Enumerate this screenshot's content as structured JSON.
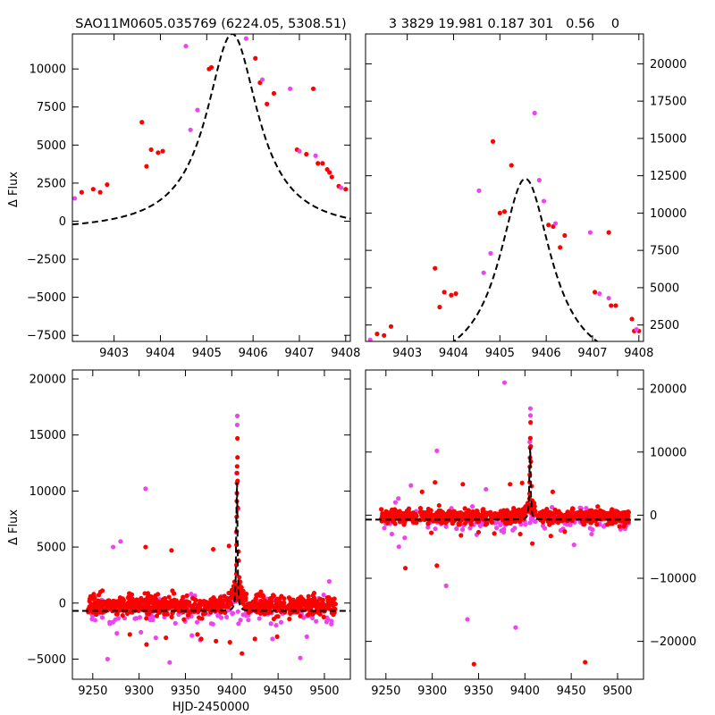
{
  "figure": {
    "title_left": "SAO11M0605.035769 (6224.05, 5308.51)",
    "title_right": "3 3829 19.981 0.187 301   0.56    0",
    "ylabel_top": "Δ Flux",
    "ylabel_bottom": "Δ Flux",
    "xlabel_bottom": "HJD-2450000"
  },
  "colors": {
    "series_a": "#ff0000",
    "series_b": "#ee44ee",
    "model": "#000000"
  },
  "chart_data": [
    {
      "id": "top-left",
      "type": "scatter",
      "title": "SAO11M0605.035769 (6224.05, 5308.51)",
      "ylabel": "Δ Flux",
      "xlim": [
        9402.1,
        9408.1
      ],
      "ylim": [
        -7900,
        12300
      ],
      "xticks": [
        9403,
        9404,
        9405,
        9406,
        9407,
        9408
      ],
      "yticks": [
        -7500,
        -5000,
        -2500,
        0,
        2500,
        5000,
        7500,
        10000
      ],
      "ytick_labels": [
        "−7500",
        "−5000",
        "−2500",
        "0",
        "2500",
        "5000",
        "7500",
        "10000"
      ],
      "yaxis_side": "left",
      "model": {
        "peak_x": 9405.55,
        "peak_y": 12300,
        "halfwidth": 0.68,
        "baseline": -700
      },
      "series": [
        {
          "name": "red",
          "points": [
            [
              9402.3,
              1900
            ],
            [
              9402.55,
              2100
            ],
            [
              9402.7,
              1900
            ],
            [
              9402.85,
              2400
            ],
            [
              9403.6,
              6500
            ],
            [
              9403.7,
              3600
            ],
            [
              9403.8,
              4700
            ],
            [
              9403.95,
              4500
            ],
            [
              9404.05,
              4600
            ],
            [
              9405.05,
              10000
            ],
            [
              9405.1,
              10100
            ],
            [
              9406.05,
              10700
            ],
            [
              9406.15,
              9100
            ],
            [
              9406.3,
              7700
            ],
            [
              9406.45,
              8400
            ],
            [
              9406.95,
              4700
            ],
            [
              9407.15,
              4400
            ],
            [
              9407.3,
              8700
            ],
            [
              9407.4,
              3800
            ],
            [
              9407.5,
              3800
            ],
            [
              9407.6,
              3400
            ],
            [
              9407.65,
              3200
            ],
            [
              9407.7,
              2900
            ],
            [
              9407.85,
              2300
            ],
            [
              9408.0,
              2100
            ]
          ]
        },
        {
          "name": "magenta",
          "points": [
            [
              9402.15,
              1500
            ],
            [
              9404.55,
              11500
            ],
            [
              9404.65,
              6000
            ],
            [
              9404.8,
              7300
            ],
            [
              9405.85,
              12000
            ],
            [
              9406.2,
              9300
            ],
            [
              9406.8,
              8700
            ],
            [
              9407.0,
              4600
            ],
            [
              9407.35,
              4300
            ],
            [
              9407.9,
              2200
            ]
          ]
        }
      ]
    },
    {
      "id": "top-right",
      "type": "scatter",
      "title": "3 3829 19.981 0.187 301   0.56    0",
      "xlim": [
        9402.1,
        9408.1
      ],
      "ylim": [
        1400,
        22000
      ],
      "xticks": [
        9403,
        9404,
        9405,
        9406,
        9407,
        9408
      ],
      "yticks": [
        2500,
        5000,
        7500,
        10000,
        12500,
        15000,
        17500,
        20000
      ],
      "ytick_labels": [
        "2500",
        "5000",
        "7500",
        "10000",
        "12500",
        "15000",
        "17500",
        "20000"
      ],
      "yaxis_side": "right",
      "model": {
        "peak_x": 9405.55,
        "peak_y": 12300,
        "halfwidth": 0.68,
        "baseline": -700
      },
      "series": [
        {
          "name": "red",
          "points": [
            [
              9402.35,
              1900
            ],
            [
              9402.5,
              1800
            ],
            [
              9402.65,
              2400
            ],
            [
              9403.6,
              6300
            ],
            [
              9403.7,
              3700
            ],
            [
              9403.8,
              4700
            ],
            [
              9403.95,
              4500
            ],
            [
              9404.05,
              4600
            ],
            [
              9404.85,
              14800
            ],
            [
              9405.0,
              10000
            ],
            [
              9405.1,
              10100
            ],
            [
              9405.25,
              13200
            ],
            [
              9406.05,
              9200
            ],
            [
              9406.15,
              9100
            ],
            [
              9406.3,
              7700
            ],
            [
              9406.4,
              8500
            ],
            [
              9407.05,
              4700
            ],
            [
              9407.35,
              8700
            ],
            [
              9407.4,
              3800
            ],
            [
              9407.5,
              3800
            ],
            [
              9407.85,
              2900
            ],
            [
              9407.9,
              2100
            ],
            [
              9408.0,
              2100
            ]
          ]
        },
        {
          "name": "magenta",
          "points": [
            [
              9402.2,
              1500
            ],
            [
              9404.55,
              11500
            ],
            [
              9404.65,
              6000
            ],
            [
              9404.8,
              7300
            ],
            [
              9405.75,
              16700
            ],
            [
              9405.85,
              12200
            ],
            [
              9405.95,
              10800
            ],
            [
              9406.2,
              9300
            ],
            [
              9406.95,
              8700
            ],
            [
              9407.15,
              4600
            ],
            [
              9407.35,
              4300
            ],
            [
              9407.95,
              2200
            ]
          ]
        }
      ]
    },
    {
      "id": "bottom-left",
      "type": "scatter",
      "ylabel": "Δ Flux",
      "xlabel": "HJD-2450000",
      "xlim": [
        9228,
        9528
      ],
      "ylim": [
        -6800,
        20800
      ],
      "xticks": [
        9250,
        9300,
        9350,
        9400,
        9450,
        9500
      ],
      "yticks": [
        -5000,
        0,
        5000,
        10000,
        15000,
        20000
      ],
      "ytick_labels": [
        "−5000",
        "0",
        "5000",
        "10000",
        "15000",
        "20000"
      ],
      "yaxis_side": "left",
      "band": {
        "seed": 7,
        "x_range": [
          9245,
          9512
        ],
        "scatter": 420,
        "count": 760,
        "mag_count": 180
      },
      "model": {
        "peak_x": 9405.5,
        "peak_y": 12300,
        "halfwidth": 0.68,
        "baseline": -700
      },
      "spike_points": [
        [
          9404.5,
          700
        ],
        [
          9404.8,
          1600
        ],
        [
          9405,
          2600
        ],
        [
          9405.1,
          3400
        ],
        [
          9405.2,
          5200
        ],
        [
          9405.3,
          6400
        ],
        [
          9405.35,
          7700
        ],
        [
          9405.5,
          9100
        ],
        [
          9405.55,
          9800
        ],
        [
          9405.6,
          10700
        ],
        [
          9405.7,
          11600
        ],
        [
          9405.8,
          12200
        ],
        [
          9406.1,
          14700
        ],
        [
          9406.2,
          13000
        ],
        [
          9406.3,
          10900
        ],
        [
          9406.5,
          8500
        ],
        [
          9407.2,
          4600
        ],
        [
          9407.4,
          3800
        ],
        [
          9408.1,
          2300
        ],
        [
          9409.0,
          1900
        ],
        [
          9410.5,
          1400
        ],
        [
          9412,
          900
        ],
        [
          9403,
          1900
        ],
        [
          9402,
          1500
        ],
        [
          9401,
          900
        ]
      ],
      "spike_mag_points": [
        [
          9406.0,
          16700
        ],
        [
          9405.9,
          15900
        ],
        [
          9405.2,
          11600
        ],
        [
          9404.8,
          6300
        ],
        [
          9406.8,
          8400
        ]
      ],
      "outliers_red": [
        [
          9307,
          5000
        ],
        [
          9335,
          4700
        ],
        [
          9380,
          4800
        ],
        [
          9397,
          5100
        ],
        [
          9308,
          -3700
        ],
        [
          9329,
          -3100
        ],
        [
          9363,
          -2800
        ],
        [
          9367,
          -3200
        ],
        [
          9383,
          -3400
        ],
        [
          9398,
          -3500
        ],
        [
          9411,
          -4500
        ],
        [
          9425,
          -3200
        ],
        [
          9449,
          -3000
        ],
        [
          9290,
          -2800
        ]
      ],
      "outliers_mag": [
        [
          9307,
          10200
        ],
        [
          9280,
          5500
        ],
        [
          9272,
          5000
        ],
        [
          9266,
          -5000
        ],
        [
          9333,
          -5300
        ],
        [
          9474,
          -4900
        ],
        [
          9366,
          -3300
        ],
        [
          9444,
          -3200
        ],
        [
          9481,
          -3000
        ],
        [
          9357,
          -2900
        ],
        [
          9276,
          -2700
        ],
        [
          9302,
          -2600
        ],
        [
          9318,
          -3100
        ]
      ]
    },
    {
      "id": "bottom-right",
      "type": "scatter",
      "xlim": [
        9228,
        9528
      ],
      "ylim": [
        -26000,
        23000
      ],
      "xticks": [
        9250,
        9300,
        9350,
        9400,
        9450,
        9500
      ],
      "yticks": [
        -20000,
        -10000,
        0,
        10000,
        20000
      ],
      "ytick_labels": [
        "−20000",
        "−10000",
        "0",
        "10000",
        "20000"
      ],
      "yaxis_side": "right",
      "band": {
        "seed": 11,
        "x_range": [
          9245,
          9512
        ],
        "scatter": 560,
        "count": 760,
        "mag_count": 180
      },
      "model": {
        "peak_x": 9405.5,
        "peak_y": 12300,
        "halfwidth": 0.68,
        "baseline": -700
      },
      "spike_points": [
        [
          9404.5,
          700
        ],
        [
          9404.8,
          1600
        ],
        [
          9405,
          2600
        ],
        [
          9405.1,
          3400
        ],
        [
          9405.2,
          5200
        ],
        [
          9405.3,
          6400
        ],
        [
          9405.35,
          7700
        ],
        [
          9405.5,
          9100
        ],
        [
          9405.6,
          10700
        ],
        [
          9405.8,
          12200
        ],
        [
          9406.1,
          14700
        ],
        [
          9406.3,
          10900
        ],
        [
          9406.5,
          8500
        ],
        [
          9407.2,
          4600
        ],
        [
          9408.1,
          2300
        ],
        [
          9410.5,
          1400
        ],
        [
          9403,
          1900
        ],
        [
          9402,
          1500
        ]
      ],
      "spike_mag_points": [
        [
          9405.9,
          16900
        ],
        [
          9406.0,
          15800
        ],
        [
          9405.2,
          11600
        ]
      ],
      "outliers_red": [
        [
          9345,
          -23600
        ],
        [
          9465,
          -23300
        ],
        [
          9271,
          -8400
        ],
        [
          9305,
          -8000
        ],
        [
          9408,
          -4500
        ],
        [
          9395,
          -3000
        ],
        [
          9331,
          -3200
        ],
        [
          9428,
          -3300
        ],
        [
          9299,
          -2800
        ],
        [
          9350,
          -2700
        ],
        [
          9367,
          -2900
        ],
        [
          9443,
          -2600
        ],
        [
          9289,
          3700
        ],
        [
          9303,
          5200
        ],
        [
          9333,
          4900
        ],
        [
          9384,
          4900
        ],
        [
          9397,
          5100
        ],
        [
          9430,
          3700
        ]
      ],
      "outliers_mag": [
        [
          9378,
          21000
        ],
        [
          9305,
          10200
        ],
        [
          9277,
          4700
        ],
        [
          9358,
          4100
        ],
        [
          9264,
          -5000
        ],
        [
          9315,
          -11200
        ],
        [
          9338,
          -16500
        ],
        [
          9390,
          -17800
        ],
        [
          9453,
          -4700
        ],
        [
          9472,
          -3000
        ],
        [
          9348,
          -3100
        ]
      ]
    }
  ]
}
